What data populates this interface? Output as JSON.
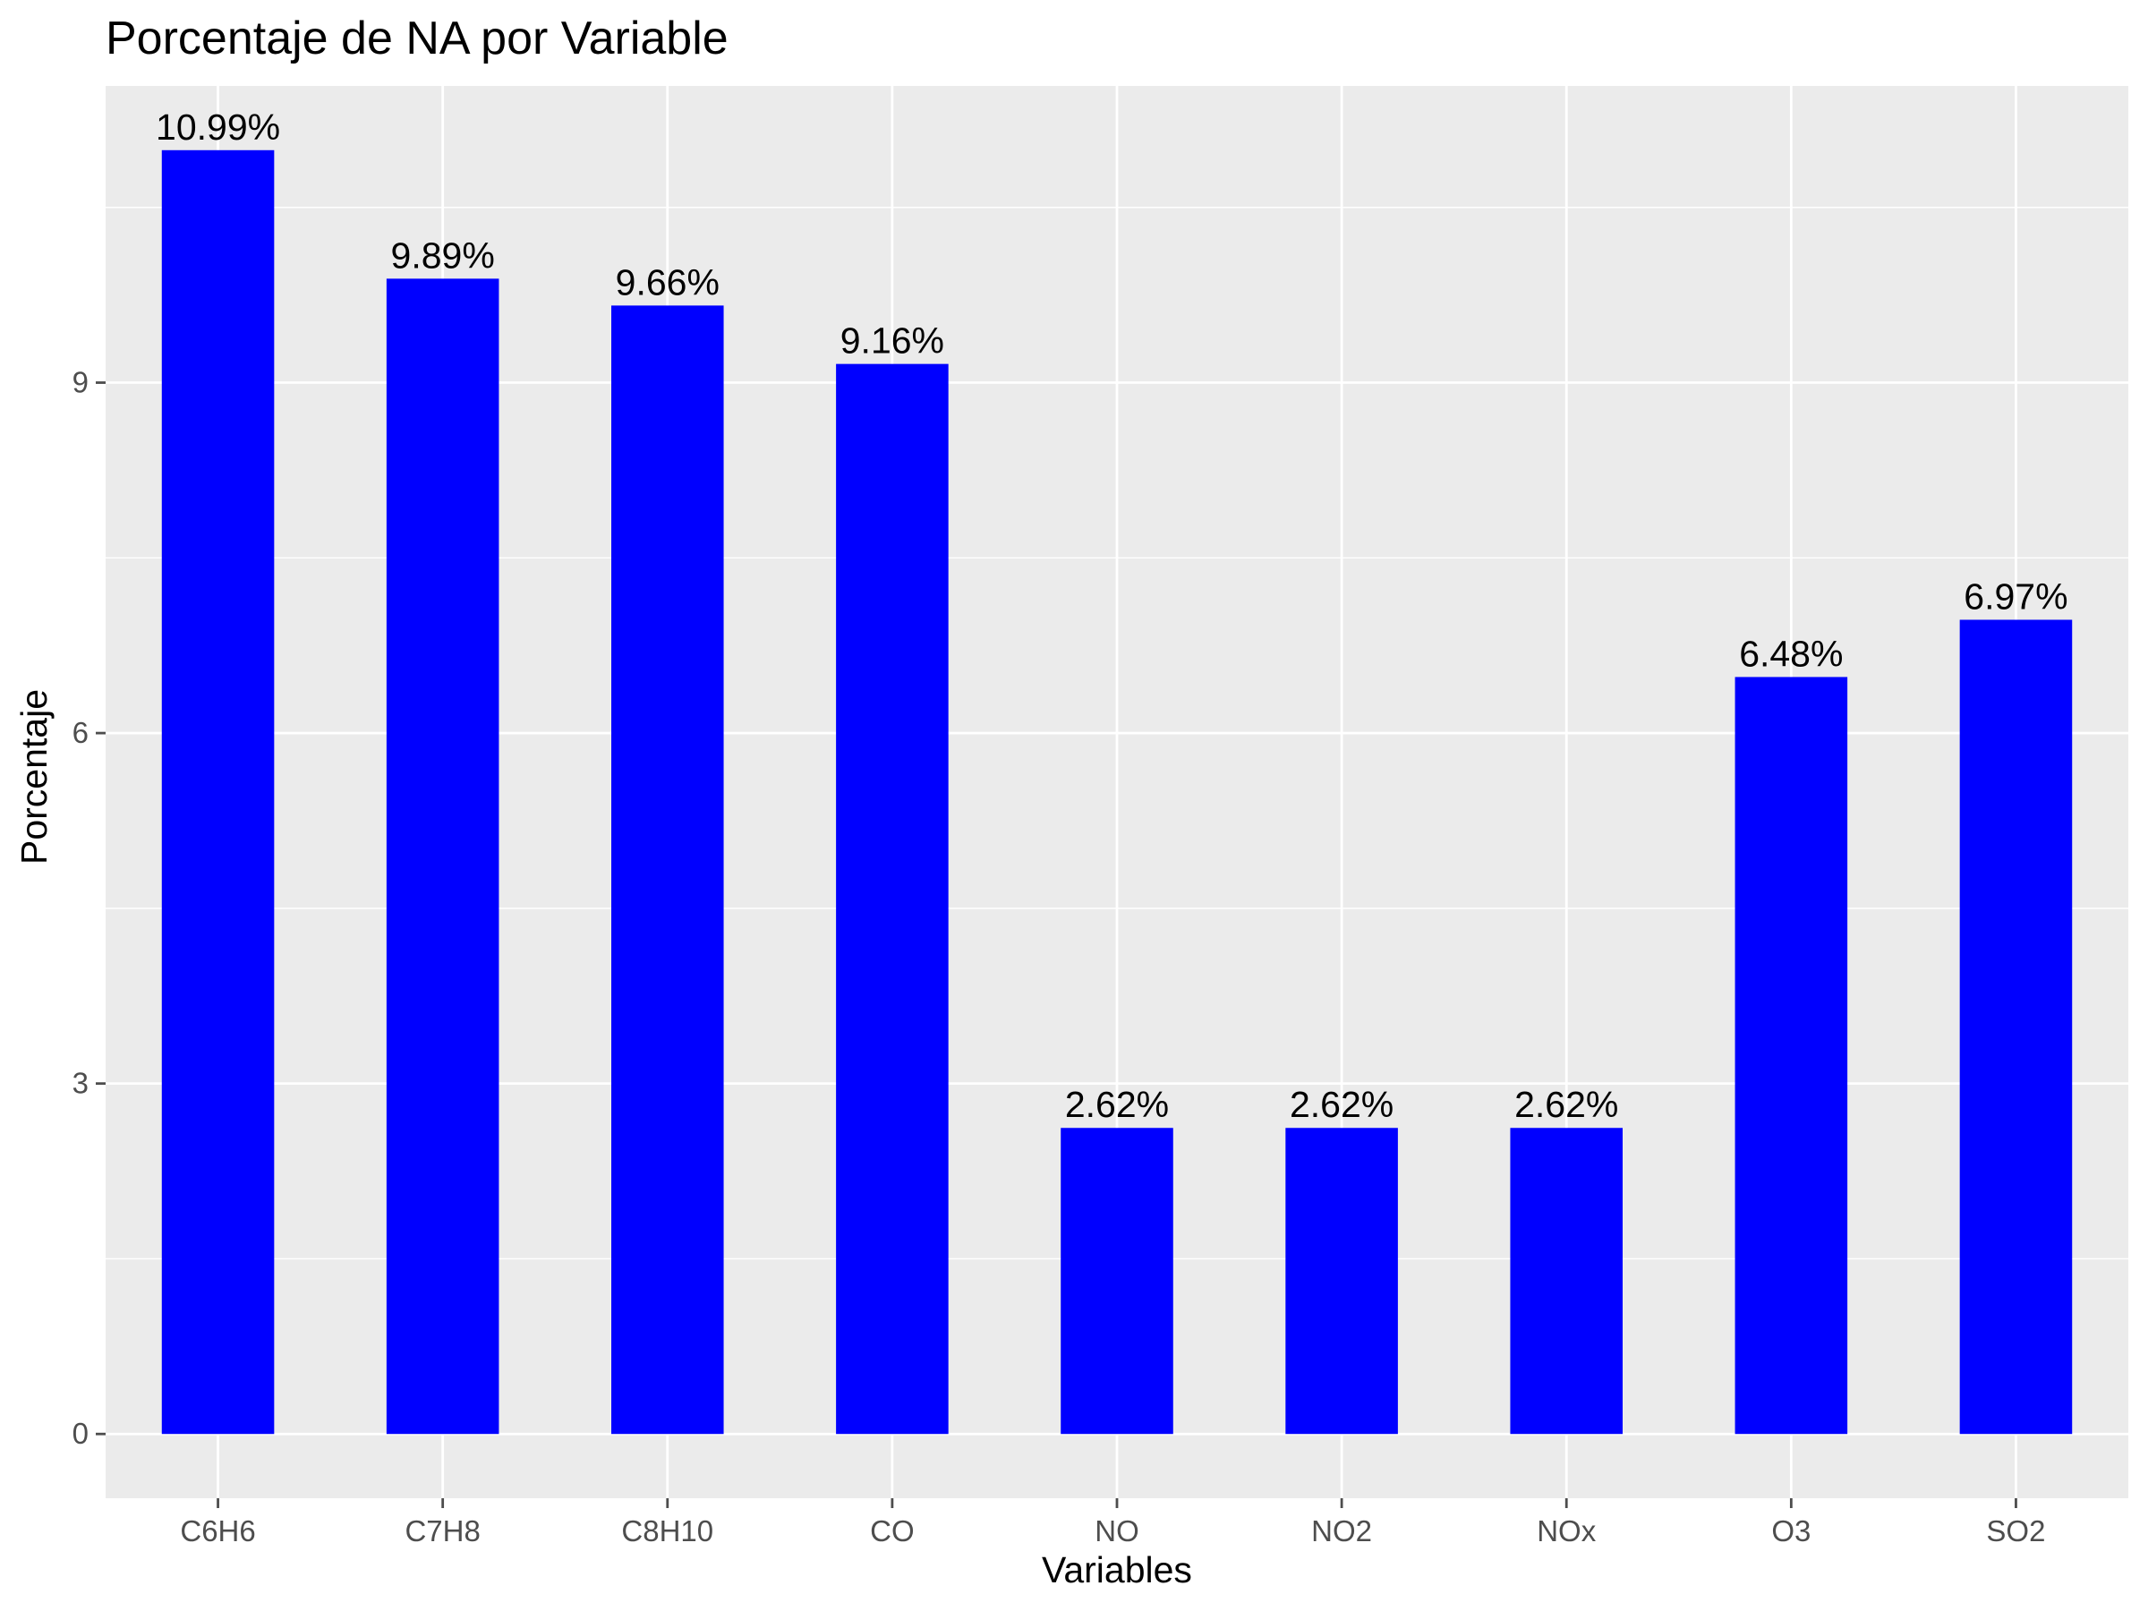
{
  "chart_data": {
    "type": "bar",
    "title": "Porcentaje de NA por Variable",
    "xlabel": "Variables",
    "ylabel": "Porcentaje",
    "categories": [
      "C6H6",
      "C7H8",
      "C8H10",
      "CO",
      "NO",
      "NO2",
      "NOx",
      "O3",
      "SO2"
    ],
    "values": [
      10.99,
      9.89,
      9.66,
      9.16,
      2.62,
      2.62,
      2.62,
      6.48,
      6.97
    ],
    "data_labels": [
      "10.99%",
      "9.89%",
      "9.66%",
      "9.16%",
      "2.62%",
      "2.62%",
      "2.62%",
      "6.48%",
      "6.97%"
    ],
    "yticks": [
      0,
      3,
      6,
      9
    ],
    "ytick_labels": [
      "0",
      "3",
      "6",
      "9"
    ],
    "ylim": [
      -0.55,
      11.54
    ],
    "grid": true,
    "colors": {
      "bar": "#0000ff",
      "panel": "#ebebeb",
      "grid": "#ffffff",
      "tick": "#4d4d4d",
      "text": "#000000"
    }
  }
}
